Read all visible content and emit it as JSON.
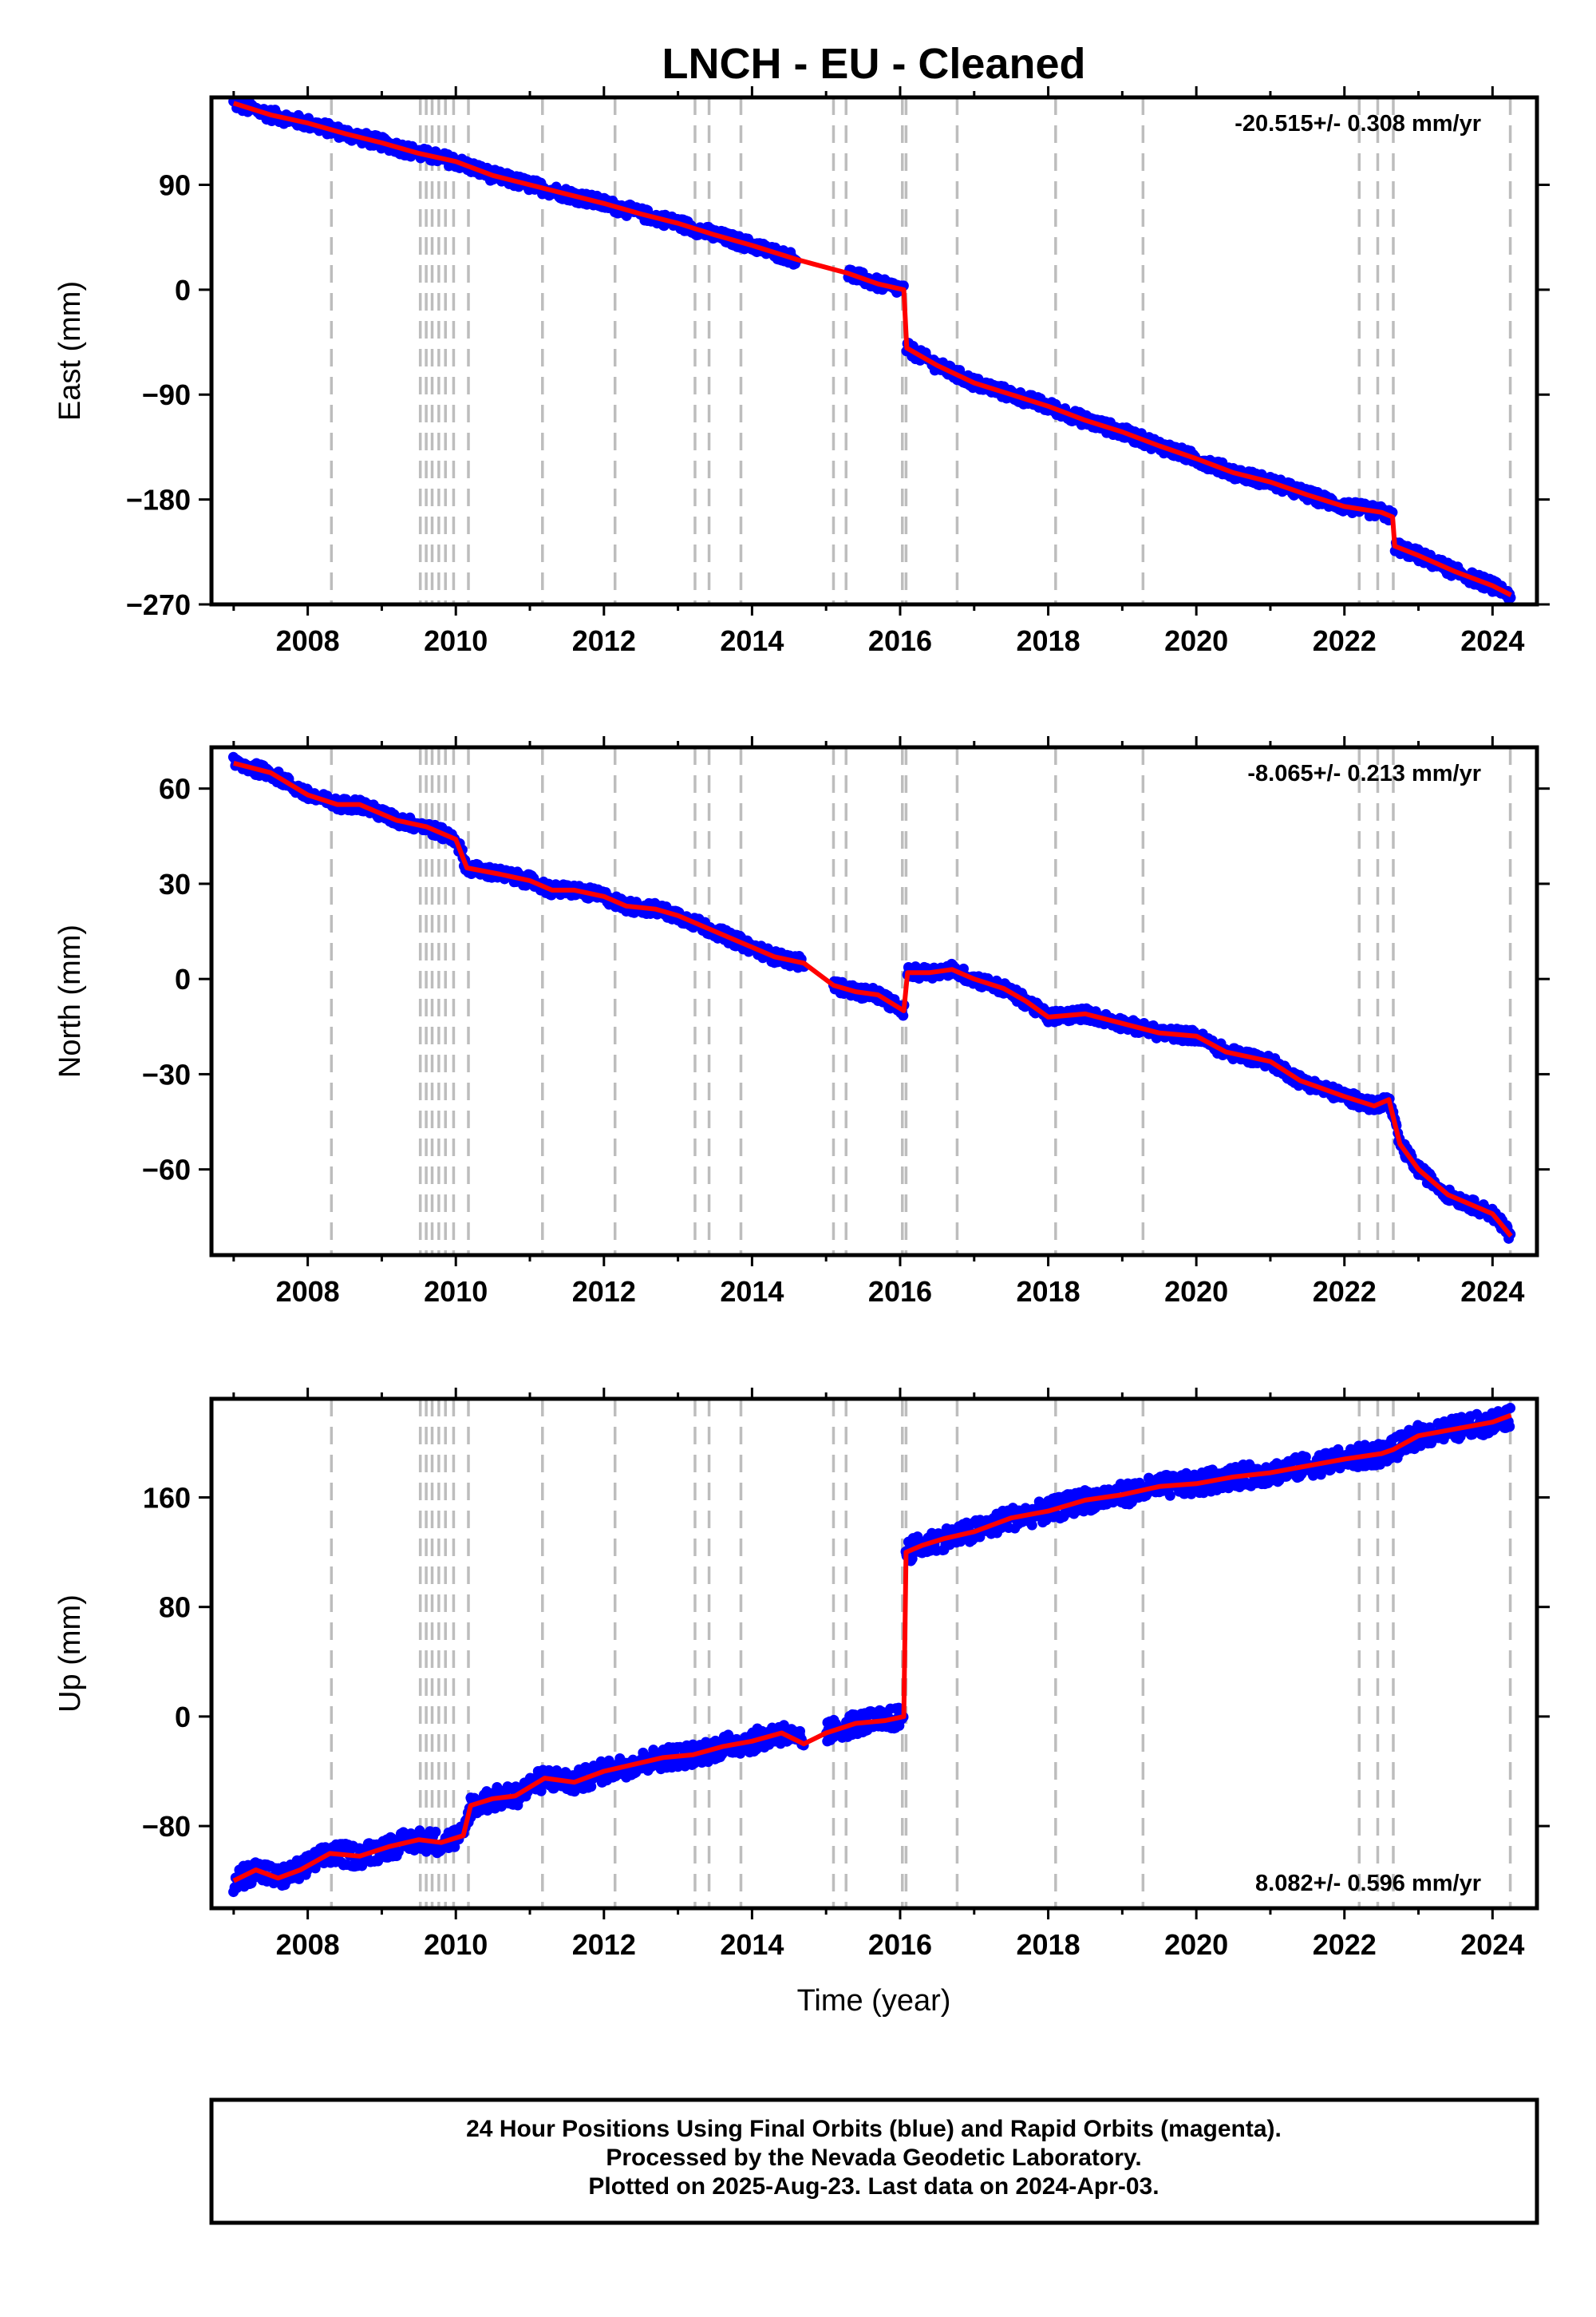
{
  "title": "LNCH  - EU - Cleaned",
  "colors": {
    "data": "#0000ff",
    "model": "#ff0000",
    "event": "#bdbdbd",
    "frame": "#000000"
  },
  "footer": {
    "line1": "24 Hour Positions Using Final Orbits (blue) and Rapid Orbits (magenta).",
    "line2": "Processed by the Nevada Geodetic Laboratory.",
    "line3": "Plotted on 2025-Aug-23. Last data on 2024-Apr-03."
  },
  "chart_data": {
    "type": "scatter",
    "x_ticks": [
      "2008",
      "2010",
      "2012",
      "2014",
      "2016",
      "2018",
      "2020",
      "2022",
      "2024"
    ],
    "xlim": [
      2006.7,
      2024.6
    ],
    "xlabel": "Time (year)",
    "event_lines": [
      2008.32,
      2009.52,
      2009.6,
      2009.68,
      2009.77,
      2009.86,
      2009.97,
      2010.17,
      2011.17,
      2012.15,
      2013.23,
      2013.42,
      2013.85,
      2015.1,
      2015.27,
      2016.03,
      2016.08,
      2016.77,
      2018.1,
      2019.28,
      2022.2,
      2022.45,
      2022.66,
      2024.24
    ],
    "panels": [
      {
        "name": "east",
        "ylabel": "East (mm)",
        "ylim": [
          -270,
          165
        ],
        "y_ticks": [
          90,
          0,
          -90,
          -180,
          -270
        ],
        "y_tick_labels": [
          "90",
          "0",
          "−90",
          "−180",
          "−270"
        ],
        "rate_text": "-20.515+/- 0.308 mm/yr",
        "rate_position": "top-right",
        "series": [
          {
            "type": "scatter",
            "x": [
              2007.0,
              2007.5,
              2008.0,
              2008.5,
              2009.0,
              2009.5,
              2010.0,
              2010.5,
              2011.0,
              2011.5,
              2012.0,
              2012.5,
              2013.0,
              2013.5,
              2014.0,
              2014.6,
              2015.3,
              2015.7,
              2016.05,
              2016.09,
              2016.5,
              2017.0,
              2017.5,
              2018.0,
              2018.5,
              2019.0,
              2019.5,
              2020.0,
              2020.5,
              2021.0,
              2021.5,
              2022.0,
              2022.5,
              2022.65,
              2022.68,
              2023.0,
              2023.5,
              2024.0,
              2024.25
            ],
            "y": [
              160,
              150,
              143,
              134,
              126,
              117,
              110,
              98,
              90,
              82,
              74,
              65,
              57,
              47,
              38,
              26,
              14,
              5,
              0,
              -50,
              -65,
              -80,
              -90,
              -100,
              -112,
              -122,
              -134,
              -145,
              -157,
              -165,
              -176,
              -186,
              -191,
              -195,
              -220,
              -228,
              -242,
              -254,
              -262
            ]
          },
          {
            "type": "line",
            "x": [
              2007.0,
              2007.5,
              2008.0,
              2008.5,
              2009.0,
              2009.5,
              2010.0,
              2010.5,
              2011.0,
              2011.5,
              2012.0,
              2012.5,
              2013.0,
              2013.5,
              2014.0,
              2014.6,
              2015.3,
              2015.7,
              2016.05,
              2016.09,
              2016.5,
              2017.0,
              2017.5,
              2018.0,
              2018.5,
              2019.0,
              2019.5,
              2020.0,
              2020.5,
              2021.0,
              2021.5,
              2022.0,
              2022.5,
              2022.65,
              2022.68,
              2023.0,
              2023.5,
              2024.0,
              2024.25
            ],
            "y": [
              160,
              150,
              143,
              134,
              126,
              117,
              110,
              98,
              90,
              82,
              74,
              65,
              57,
              47,
              38,
              26,
              14,
              5,
              0,
              -50,
              -65,
              -80,
              -90,
              -100,
              -112,
              -122,
              -134,
              -145,
              -157,
              -165,
              -176,
              -186,
              -191,
              -195,
              -220,
              -228,
              -242,
              -254,
              -262
            ]
          }
        ]
      },
      {
        "name": "north",
        "ylabel": "North (mm)",
        "ylim": [
          -87,
          73
        ],
        "y_ticks": [
          60,
          30,
          0,
          -30,
          -60
        ],
        "y_tick_labels": [
          "60",
          "30",
          "0",
          "−30",
          "−60"
        ],
        "rate_text": "-8.065+/- 0.213 mm/yr",
        "rate_position": "top-right",
        "series": [
          {
            "type": "scatter",
            "x": [
              2007.0,
              2007.5,
              2008.0,
              2008.4,
              2008.7,
              2009.2,
              2009.6,
              2010.0,
              2010.15,
              2010.6,
              2011.0,
              2011.3,
              2011.6,
              2012.0,
              2012.3,
              2012.7,
              2013.0,
              2013.4,
              2013.8,
              2014.0,
              2014.3,
              2014.7,
              2015.1,
              2015.4,
              2015.7,
              2016.05,
              2016.1,
              2016.4,
              2016.7,
              2017.0,
              2017.4,
              2017.7,
              2018.0,
              2018.5,
              2019.0,
              2019.5,
              2020.0,
              2020.4,
              2021.0,
              2021.4,
              2022.0,
              2022.4,
              2022.6,
              2022.75,
              2023.0,
              2023.4,
              2024.0,
              2024.25
            ],
            "y": [
              68,
              65,
              58,
              55,
              55,
              50,
              48,
              44,
              35,
              33,
              31,
              28,
              28,
              26,
              23,
              22,
              20,
              16,
              12,
              10,
              7,
              5,
              -2,
              -4,
              -5,
              -10,
              2,
              2,
              3,
              0,
              -3,
              -7,
              -12,
              -11,
              -14,
              -17,
              -18,
              -23,
              -26,
              -32,
              -37,
              -40,
              -38,
              -52,
              -60,
              -68,
              -74,
              -81
            ]
          },
          {
            "type": "line",
            "x": [
              2007.0,
              2007.5,
              2008.0,
              2008.4,
              2008.7,
              2009.2,
              2009.6,
              2010.0,
              2010.15,
              2010.6,
              2011.0,
              2011.3,
              2011.6,
              2012.0,
              2012.3,
              2012.7,
              2013.0,
              2013.4,
              2013.8,
              2014.0,
              2014.3,
              2014.7,
              2015.1,
              2015.4,
              2015.7,
              2016.05,
              2016.1,
              2016.4,
              2016.7,
              2017.0,
              2017.4,
              2017.7,
              2018.0,
              2018.5,
              2019.0,
              2019.5,
              2020.0,
              2020.4,
              2021.0,
              2021.4,
              2022.0,
              2022.4,
              2022.6,
              2022.75,
              2023.0,
              2023.4,
              2024.0,
              2024.25
            ],
            "y": [
              68,
              65,
              58,
              55,
              55,
              50,
              48,
              44,
              35,
              33,
              31,
              28,
              28,
              26,
              23,
              22,
              20,
              16,
              12,
              10,
              7,
              5,
              -2,
              -4,
              -5,
              -10,
              2,
              2,
              3,
              0,
              -3,
              -7,
              -12,
              -11,
              -14,
              -17,
              -18,
              -23,
              -26,
              -32,
              -37,
              -40,
              -38,
              -52,
              -60,
              -68,
              -74,
              -81
            ]
          }
        ]
      },
      {
        "name": "up",
        "ylabel": "Up (mm)",
        "ylim": [
          -140,
          232
        ],
        "y_ticks": [
          160,
          80,
          0,
          -80
        ],
        "y_tick_labels": [
          "160",
          "80",
          "0",
          "−80"
        ],
        "rate_text": "8.082+/- 0.596 mm/yr",
        "rate_position": "bottom-right",
        "series": [
          {
            "type": "scatter",
            "x": [
              2007.0,
              2007.3,
              2007.6,
              2007.9,
              2008.3,
              2008.7,
              2009.1,
              2009.5,
              2009.8,
              2010.1,
              2010.2,
              2010.5,
              2010.8,
              2011.2,
              2011.6,
              2012.0,
              2012.4,
              2012.8,
              2013.2,
              2013.6,
              2014.0,
              2014.4,
              2014.7,
              2015.0,
              2015.4,
              2015.8,
              2016.05,
              2016.08,
              2016.3,
              2016.6,
              2017.0,
              2017.5,
              2018.0,
              2018.5,
              2019.0,
              2019.5,
              2020.0,
              2020.5,
              2021.0,
              2021.5,
              2022.0,
              2022.5,
              2022.66,
              2023.0,
              2023.5,
              2024.0,
              2024.25
            ],
            "y": [
              -120,
              -112,
              -118,
              -112,
              -100,
              -102,
              -95,
              -90,
              -92,
              -87,
              -65,
              -60,
              -58,
              -45,
              -48,
              -40,
              -35,
              -30,
              -28,
              -22,
              -18,
              -12,
              -20,
              -12,
              -5,
              -3,
              0,
              120,
              125,
              130,
              135,
              145,
              150,
              158,
              162,
              168,
              170,
              175,
              178,
              183,
              188,
              192,
              195,
              205,
              210,
              215,
              220
            ]
          },
          {
            "type": "line",
            "x": [
              2007.0,
              2007.3,
              2007.6,
              2007.9,
              2008.3,
              2008.7,
              2009.1,
              2009.5,
              2009.8,
              2010.1,
              2010.2,
              2010.5,
              2010.8,
              2011.2,
              2011.6,
              2012.0,
              2012.4,
              2012.8,
              2013.2,
              2013.6,
              2014.0,
              2014.4,
              2014.7,
              2015.0,
              2015.4,
              2015.8,
              2016.05,
              2016.08,
              2016.3,
              2016.6,
              2017.0,
              2017.5,
              2018.0,
              2018.5,
              2019.0,
              2019.5,
              2020.0,
              2020.5,
              2021.0,
              2021.5,
              2022.0,
              2022.5,
              2022.66,
              2023.0,
              2023.5,
              2024.0,
              2024.25
            ],
            "y": [
              -120,
              -112,
              -118,
              -112,
              -100,
              -102,
              -95,
              -90,
              -92,
              -87,
              -65,
              -60,
              -58,
              -45,
              -48,
              -40,
              -35,
              -30,
              -28,
              -22,
              -18,
              -12,
              -20,
              -12,
              -5,
              -3,
              0,
              120,
              125,
              130,
              135,
              145,
              150,
              158,
              162,
              168,
              170,
              175,
              178,
              183,
              188,
              192,
              195,
              205,
              210,
              215,
              220
            ]
          }
        ]
      }
    ]
  }
}
